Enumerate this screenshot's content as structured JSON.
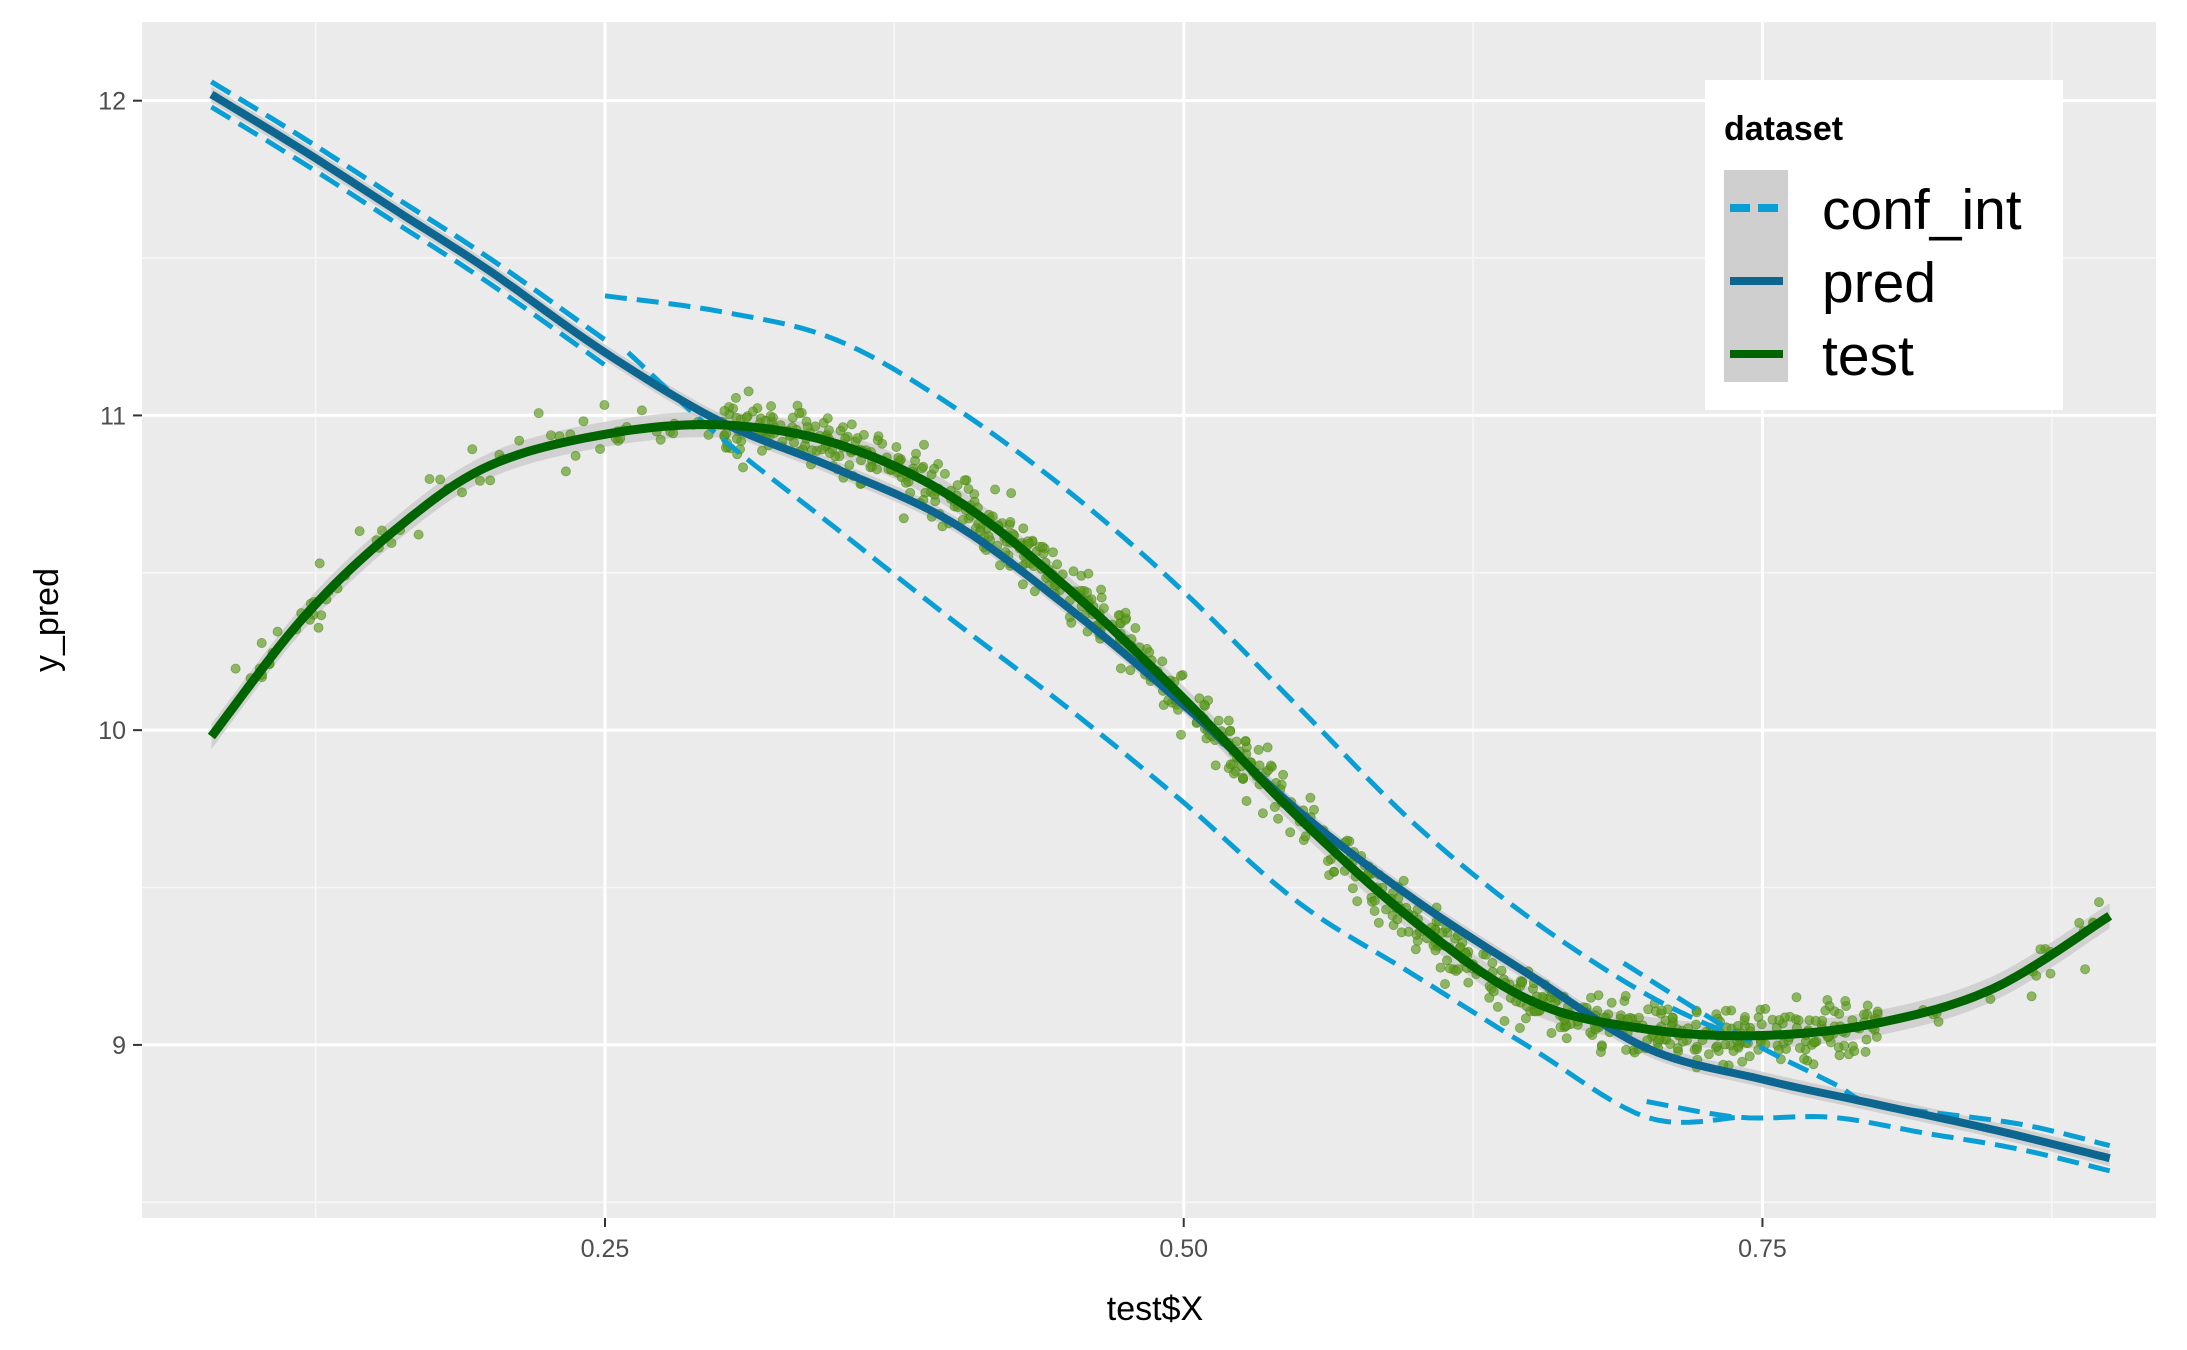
{
  "chart_data": {
    "type": "line",
    "xlabel": "test$X",
    "ylabel": "y_pred",
    "xlim": [
      0.05,
      0.92
    ],
    "ylim": [
      8.45,
      12.25
    ],
    "x_ticks": [
      0.25,
      0.5,
      0.75
    ],
    "x_tick_labels": [
      "0.25",
      "0.50",
      "0.75"
    ],
    "y_ticks": [
      9,
      10,
      11,
      12
    ],
    "y_tick_labels": [
      "9",
      "10",
      "11",
      "12"
    ],
    "grid": true,
    "legend": {
      "title": "dataset",
      "position": "top-right",
      "items": [
        {
          "label": "conf_int",
          "color": "#0a9fd4",
          "style": "dashed"
        },
        {
          "label": "pred",
          "color": "#0c6690",
          "style": "solid"
        },
        {
          "label": "test",
          "color": "#006400",
          "style": "solid"
        }
      ]
    },
    "series": [
      {
        "name": "pred",
        "color": "#0c6690",
        "x": [
          0.08,
          0.12,
          0.16,
          0.2,
          0.25,
          0.3,
          0.35,
          0.4,
          0.45,
          0.5,
          0.55,
          0.6,
          0.65,
          0.7,
          0.75,
          0.8,
          0.85,
          0.9
        ],
        "y": [
          12.02,
          11.84,
          11.65,
          11.46,
          11.2,
          10.98,
          10.83,
          10.66,
          10.39,
          10.08,
          9.74,
          9.46,
          9.22,
          8.99,
          8.89,
          8.81,
          8.73,
          8.64
        ]
      },
      {
        "name": "conf_int",
        "color": "#0a9fd4",
        "segments": [
          {
            "x": [
              0.08,
              0.12,
              0.16,
              0.2,
              0.25
            ],
            "y": [
              12.06,
              11.88,
              11.69,
              11.5,
              11.24
            ]
          },
          {
            "x": [
              0.08,
              0.12,
              0.16,
              0.2,
              0.25
            ],
            "y": [
              11.98,
              11.8,
              11.61,
              11.42,
              11.16
            ]
          },
          {
            "x": [
              0.25,
              0.3,
              0.35,
              0.4,
              0.45,
              0.5,
              0.55,
              0.6,
              0.65,
              0.7,
              0.74
            ],
            "y": [
              11.38,
              11.33,
              11.24,
              11.03,
              10.76,
              10.44,
              10.07,
              9.7,
              9.4,
              9.16,
              9.02
            ]
          },
          {
            "x": [
              0.26,
              0.3,
              0.35,
              0.4,
              0.45,
              0.5,
              0.55,
              0.6,
              0.65,
              0.7,
              0.74
            ],
            "y": [
              11.2,
              10.93,
              10.64,
              10.35,
              10.07,
              9.77,
              9.45,
              9.22,
              8.99,
              8.77,
              8.77
            ]
          },
          {
            "x": [
              0.7,
              0.74,
              0.78,
              0.82,
              0.86,
              0.9
            ],
            "y": [
              8.82,
              8.77,
              8.77,
              8.72,
              8.67,
              8.6
            ]
          },
          {
            "x": [
              0.69,
              0.74,
              0.78,
              0.8,
              0.86,
              0.9
            ],
            "y": [
              9.26,
              9.03,
              8.88,
              8.81,
              8.75,
              8.68
            ]
          }
        ]
      },
      {
        "name": "test",
        "color": "#006400",
        "x": [
          0.08,
          0.12,
          0.16,
          0.2,
          0.25,
          0.3,
          0.35,
          0.4,
          0.45,
          0.5,
          0.55,
          0.6,
          0.65,
          0.7,
          0.75,
          0.8,
          0.85,
          0.9
        ],
        "y": [
          9.98,
          10.36,
          10.64,
          10.84,
          10.94,
          10.97,
          10.91,
          10.74,
          10.45,
          10.1,
          9.72,
          9.39,
          9.14,
          9.05,
          9.03,
          9.07,
          9.18,
          9.41
        ]
      }
    ],
    "points": {
      "color": "#5a9a1a",
      "count": 900,
      "x_range": [
        0.08,
        0.9
      ],
      "spread_sd": 0.08
    }
  }
}
